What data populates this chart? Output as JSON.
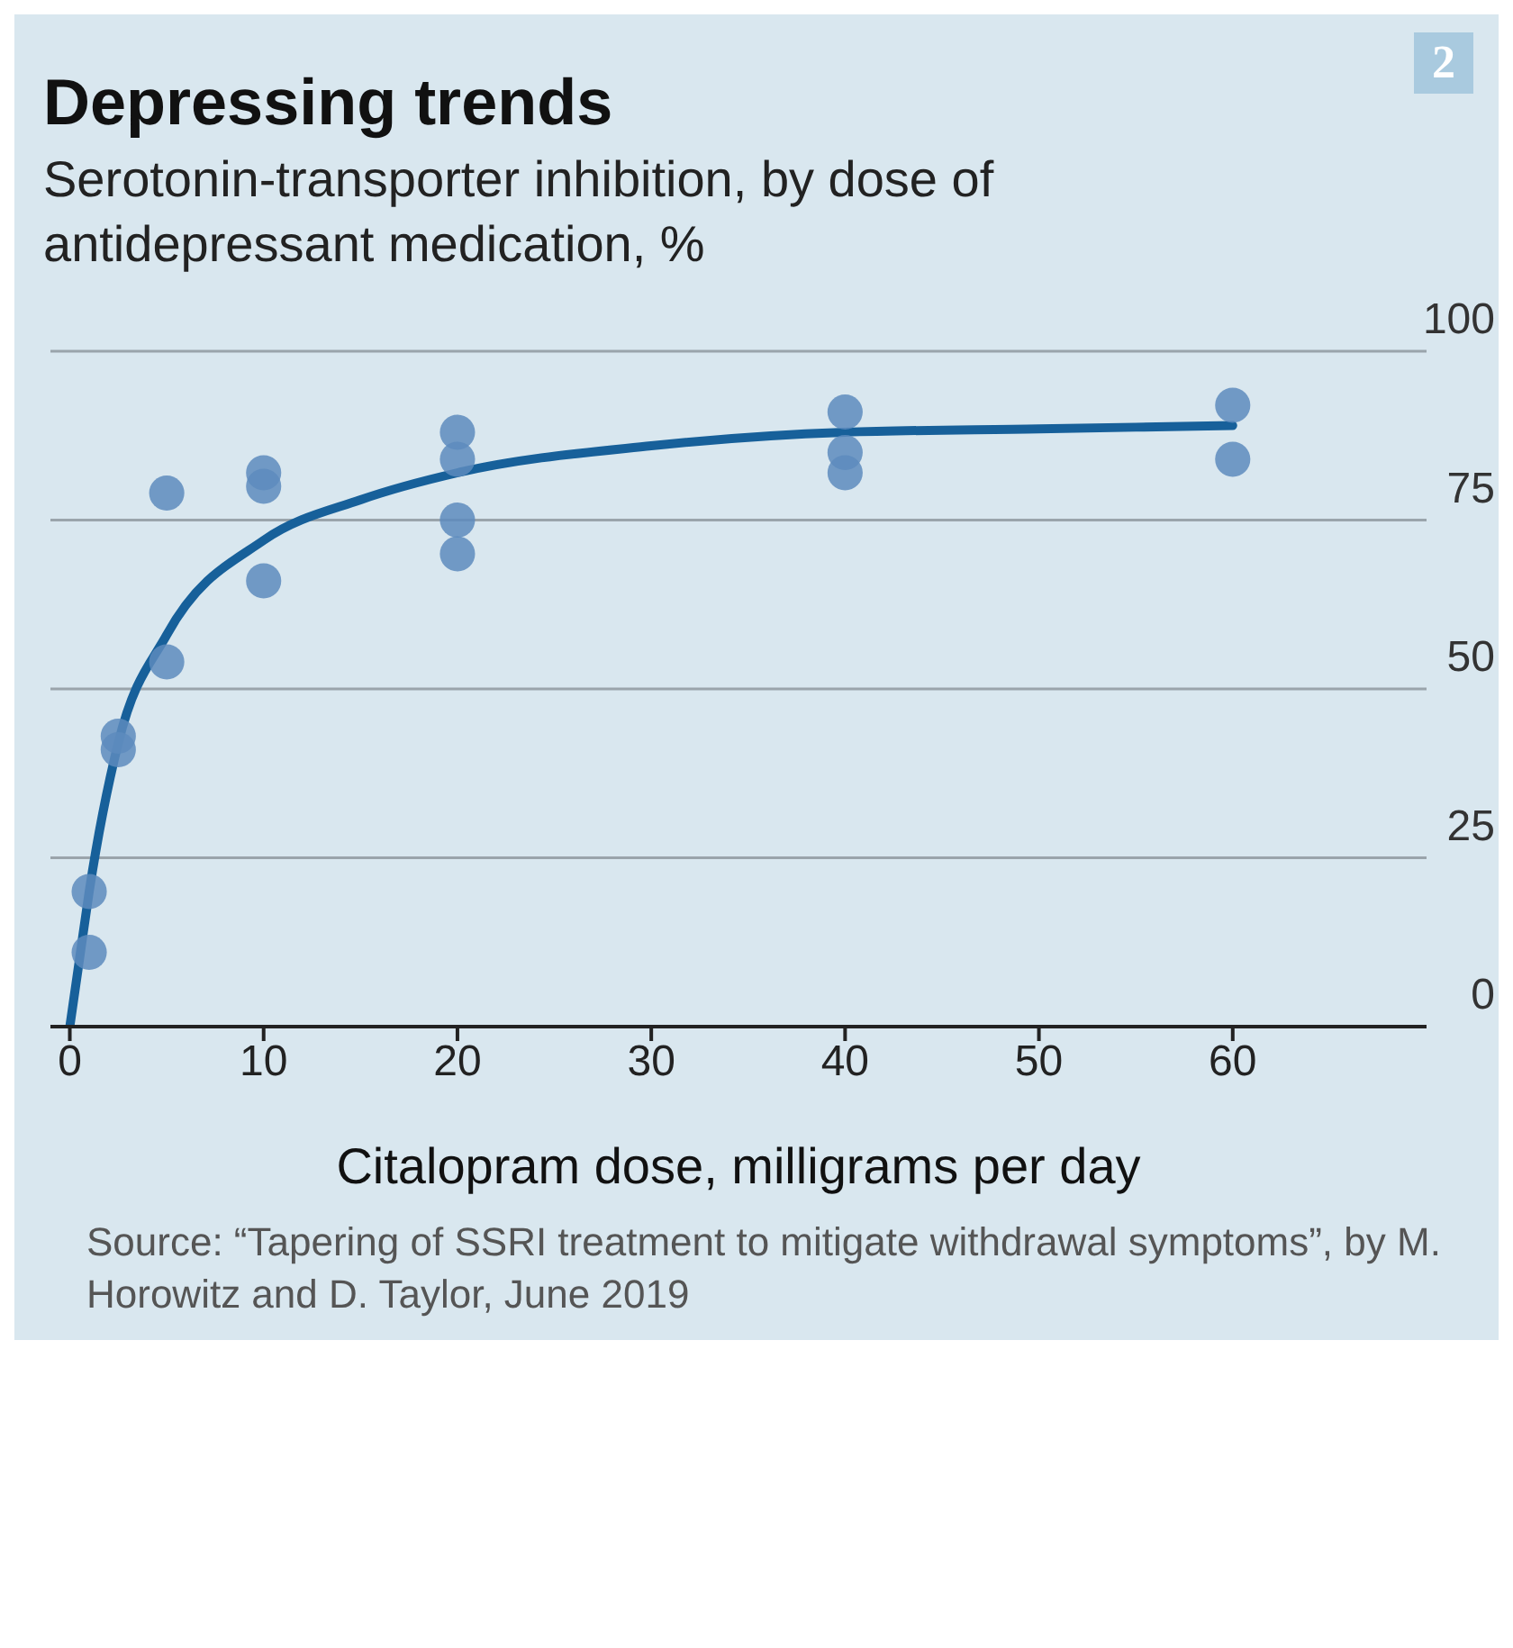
{
  "chart_data": {
    "type": "scatter",
    "title": "Depressing trends",
    "subtitle": "Serotonin-transporter inhibition, by dose of antidepressant medication, %",
    "xlabel": "Citalopram dose, milligrams per day",
    "annotations": [
      "2",
      "Source: “Tapering of SSRI treatment to mitigate withdrawal symptoms”, by M. Horowitz and D. Taylor, June 2019"
    ],
    "series": [
      {
        "color": "#5d8bbd",
        "marker": "circle",
        "x": [
          1,
          1,
          2.5,
          2.5,
          5,
          5,
          10,
          10,
          10,
          20,
          20,
          20,
          20,
          40,
          40,
          40,
          60,
          60
        ],
        "values": [
          20,
          11,
          43,
          41,
          79,
          54,
          82,
          80,
          66,
          88,
          84,
          75,
          70,
          91,
          85,
          82,
          92,
          84
        ]
      },
      {
        "type": "line",
        "color": "#17609a",
        "marker": "none",
        "line_style": "solid",
        "x": [
          0,
          0.5,
          1,
          2.5,
          5,
          10,
          15,
          20,
          30,
          40,
          50,
          60
        ],
        "values": [
          0,
          10,
          20,
          42,
          58,
          72,
          78,
          82,
          86,
          88,
          88.5,
          89
        ]
      }
    ],
    "xlim": [
      -1,
      70
    ],
    "xticks": [
      0,
      10,
      20,
      30,
      40,
      50,
      60
    ],
    "ylim": [
      0,
      100
    ],
    "yticks": [
      0,
      25,
      50,
      75,
      100
    ],
    "grid": "y"
  }
}
